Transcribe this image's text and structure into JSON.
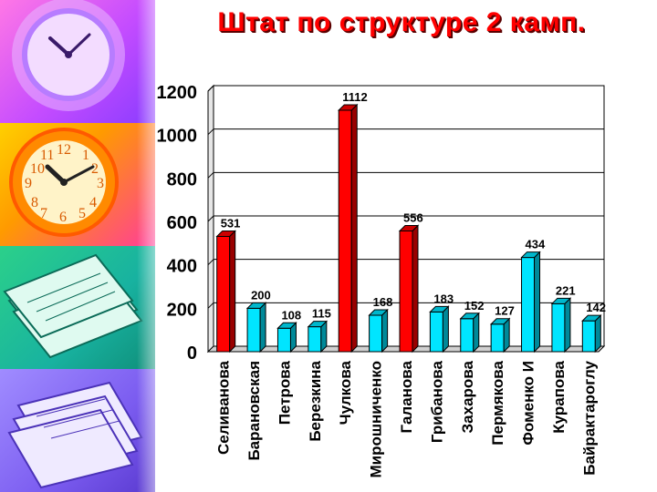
{
  "slide": {
    "title": "Штат по структуре 2 камп."
  },
  "chart_data": {
    "type": "bar",
    "title": "Штат по структуре 2 камп.",
    "categories": [
      "Селиванова",
      "Барановская",
      "Петрова",
      "Березкина",
      "Чулкова",
      "Мирошниченко",
      "Галанова",
      "Грибанова",
      "Захарова",
      "Пермякова",
      "Фоменко И",
      "Курапова",
      "Байрактароглу"
    ],
    "values": [
      531,
      200,
      108,
      115,
      1112,
      168,
      556,
      183,
      152,
      127,
      434,
      221,
      142
    ],
    "value_labels": [
      "531",
      "200",
      "108",
      "115",
      "1112",
      "168",
      "556",
      "183",
      "152",
      "127",
      "434",
      "221",
      "142"
    ],
    "bar_colors": [
      "#ff0000",
      "#00e5ff",
      "#00e5ff",
      "#00e5ff",
      "#ff0000",
      "#00e5ff",
      "#ff0000",
      "#00e5ff",
      "#00e5ff",
      "#00e5ff",
      "#00e5ff",
      "#00e5ff",
      "#00e5ff"
    ],
    "ylim": [
      0,
      1200
    ],
    "yticks": [
      0,
      200,
      400,
      600,
      800,
      1000,
      1200
    ],
    "ytick_labels": [
      "0",
      "200",
      "400",
      "600",
      "800",
      "1000",
      "1200"
    ],
    "grid": true,
    "xlabel": "",
    "ylabel": ""
  },
  "colors": {
    "title": "#ff0000",
    "red_bar": "#ff0000",
    "cyan_bar": "#00e5ff",
    "gridline": "#000000"
  },
  "sidebar": {
    "icons": [
      "clock-icon",
      "clock-icon",
      "papers-icon",
      "papers-icon"
    ]
  }
}
